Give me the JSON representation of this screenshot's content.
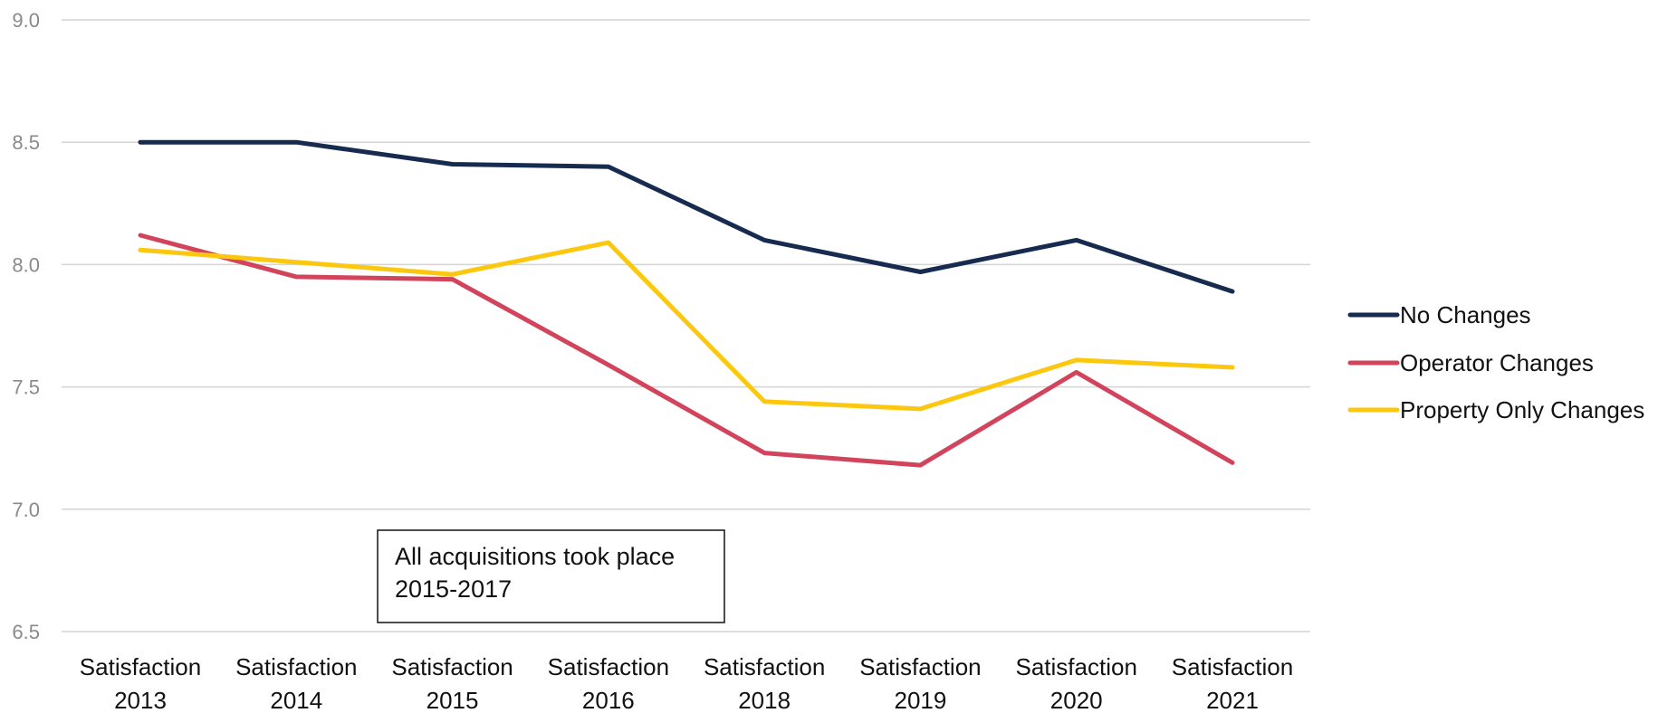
{
  "chart_data": {
    "type": "line",
    "categories": [
      [
        "Satisfaction",
        "2013"
      ],
      [
        "Satisfaction",
        "2014"
      ],
      [
        "Satisfaction",
        "2015"
      ],
      [
        "Satisfaction",
        "2016"
      ],
      [
        "Satisfaction",
        "2018"
      ],
      [
        "Satisfaction",
        "2019"
      ],
      [
        "Satisfaction",
        "2020"
      ],
      [
        "Satisfaction",
        "2021"
      ]
    ],
    "ylim": [
      6.5,
      9.0
    ],
    "yticks": [
      "6.5",
      "7.0",
      "7.5",
      "8.0",
      "8.5",
      "9.0"
    ],
    "grid": true,
    "legend_position": "right",
    "series": [
      {
        "name": "No Changes",
        "color": "#172a4f",
        "values": [
          8.5,
          8.5,
          8.41,
          8.4,
          8.1,
          7.97,
          8.1,
          7.89
        ]
      },
      {
        "name": "Operator Changes",
        "color": "#d2445c",
        "values": [
          8.12,
          7.95,
          7.94,
          7.59,
          7.23,
          7.18,
          7.56,
          7.19
        ]
      },
      {
        "name": "Property Only Changes",
        "color": "#fcc80f",
        "values": [
          8.06,
          8.01,
          7.96,
          8.09,
          7.44,
          7.41,
          7.61,
          7.58
        ]
      }
    ],
    "annotation": [
      "All acquisitions took place",
      "2015-2017"
    ]
  }
}
